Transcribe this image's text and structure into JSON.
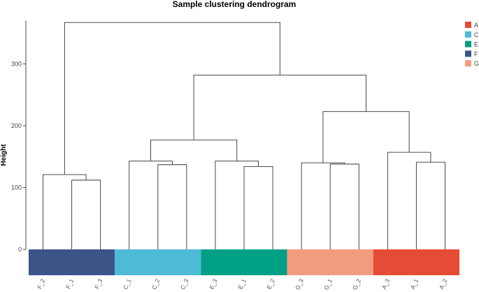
{
  "chart_data": {
    "type": "dendrogram",
    "title": "Sample clustering dendrogram",
    "xlabel": "",
    "ylabel": "Height",
    "ylim": [
      0,
      370
    ],
    "yticks": [
      0,
      100,
      200,
      300
    ],
    "leaves": [
      {
        "label": "F_2",
        "group": "F"
      },
      {
        "label": "F_1",
        "group": "F"
      },
      {
        "label": "F_3",
        "group": "F"
      },
      {
        "label": "C_1",
        "group": "C"
      },
      {
        "label": "C_2",
        "group": "C"
      },
      {
        "label": "C_3",
        "group": "C"
      },
      {
        "label": "E_3",
        "group": "E"
      },
      {
        "label": "E_1",
        "group": "E"
      },
      {
        "label": "E_2",
        "group": "E"
      },
      {
        "label": "G_3",
        "group": "G"
      },
      {
        "label": "G_1",
        "group": "G"
      },
      {
        "label": "G_2",
        "group": "G"
      },
      {
        "label": "A_3",
        "group": "A"
      },
      {
        "label": "A_1",
        "group": "A"
      },
      {
        "label": "A_2",
        "group": "A"
      }
    ],
    "merges": [
      {
        "id": "m1",
        "left": "F_1",
        "right": "F_3",
        "height": 112
      },
      {
        "id": "m2",
        "left": "F_2",
        "right": "m1",
        "height": 121
      },
      {
        "id": "m3",
        "left": "C_2",
        "right": "C_3",
        "height": 137
      },
      {
        "id": "m4",
        "left": "C_1",
        "right": "m3",
        "height": 143
      },
      {
        "id": "m5",
        "left": "E_1",
        "right": "E_2",
        "height": 134
      },
      {
        "id": "m6",
        "left": "E_3",
        "right": "m5",
        "height": 143
      },
      {
        "id": "m7",
        "left": "m4",
        "right": "m6",
        "height": 177
      },
      {
        "id": "m8",
        "left": "G_1",
        "right": "G_2",
        "height": 138
      },
      {
        "id": "m9",
        "left": "G_3",
        "right": "m8",
        "height": 140
      },
      {
        "id": "m10",
        "left": "A_1",
        "right": "A_2",
        "height": 141
      },
      {
        "id": "m11",
        "left": "A_3",
        "right": "m10",
        "height": 157
      },
      {
        "id": "m12",
        "left": "m9",
        "right": "m11",
        "height": 223
      },
      {
        "id": "m13",
        "left": "m7",
        "right": "m12",
        "height": 282
      },
      {
        "id": "m14",
        "left": "m2",
        "right": "m13",
        "height": 367
      }
    ],
    "legend": {
      "position": "top-right",
      "entries": [
        {
          "label": "A",
          "color": "#E64B35"
        },
        {
          "label": "C",
          "color": "#4DBBD5"
        },
        {
          "label": "E",
          "color": "#00A087"
        },
        {
          "label": "F",
          "color": "#3C5488"
        },
        {
          "label": "G",
          "color": "#F39B7F"
        }
      ]
    },
    "group_colors": {
      "A": "#E64B35",
      "C": "#4DBBD5",
      "E": "#00A087",
      "F": "#3C5488",
      "G": "#F39B7F"
    }
  }
}
